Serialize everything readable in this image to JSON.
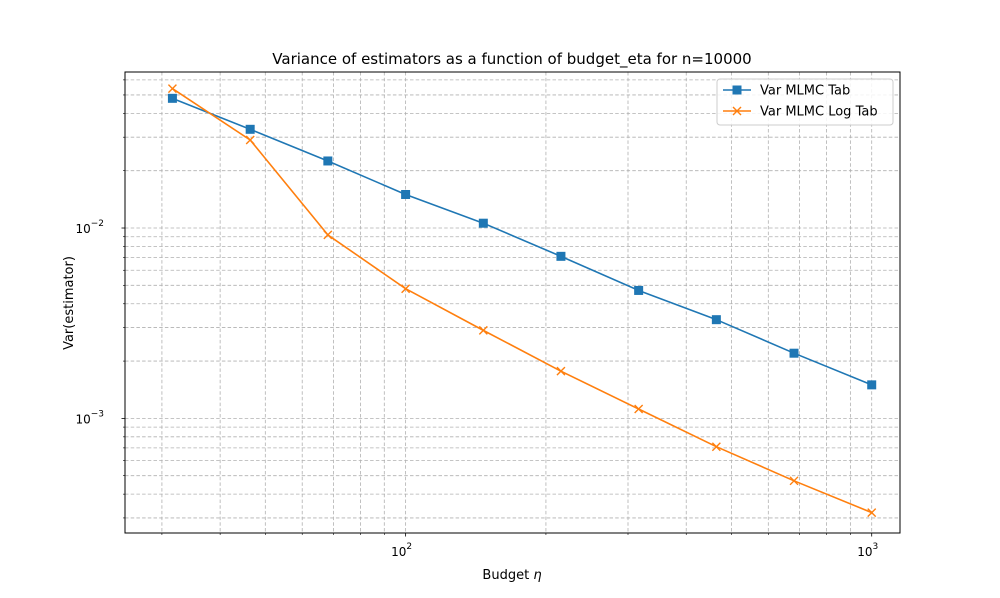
{
  "chart_data": {
    "type": "line",
    "title": "Variance of estimators as a function of budget_eta for n=10000",
    "xlabel": "Budget",
    "xlabel_symbol": "η",
    "ylabel": "Var(estimator)",
    "xscale": "log",
    "yscale": "log",
    "xlim": [
      25,
      1150
    ],
    "ylim": [
      0.00025,
      0.066
    ],
    "x_tick_labels": [
      {
        "base": "10",
        "exp": "2",
        "value": 100
      },
      {
        "base": "10",
        "exp": "3",
        "value": 1000
      }
    ],
    "y_tick_labels": [
      {
        "base": "10",
        "exp": "−2",
        "value": 0.01
      },
      {
        "base": "10",
        "exp": "−3",
        "value": 0.001
      }
    ],
    "grid": true,
    "grid_style": "dashed, major and minor",
    "legend_position": "top-right",
    "x": [
      31.6,
      46.4,
      68.1,
      100,
      146.8,
      215.4,
      316.2,
      464.2,
      681.3,
      1000
    ],
    "series": [
      {
        "name": "Var MLMC Tab",
        "color": "#1f77b4",
        "marker": "square",
        "values": [
          0.048,
          0.033,
          0.0225,
          0.015,
          0.0106,
          0.0071,
          0.0047,
          0.0033,
          0.0022,
          0.0015
        ]
      },
      {
        "name": "Var MLMC Log Tab",
        "color": "#ff7f0e",
        "marker": "x",
        "values": [
          0.054,
          0.029,
          0.0092,
          0.0048,
          0.0029,
          0.00177,
          0.00112,
          0.00071,
          0.00047,
          0.00032
        ]
      }
    ]
  }
}
